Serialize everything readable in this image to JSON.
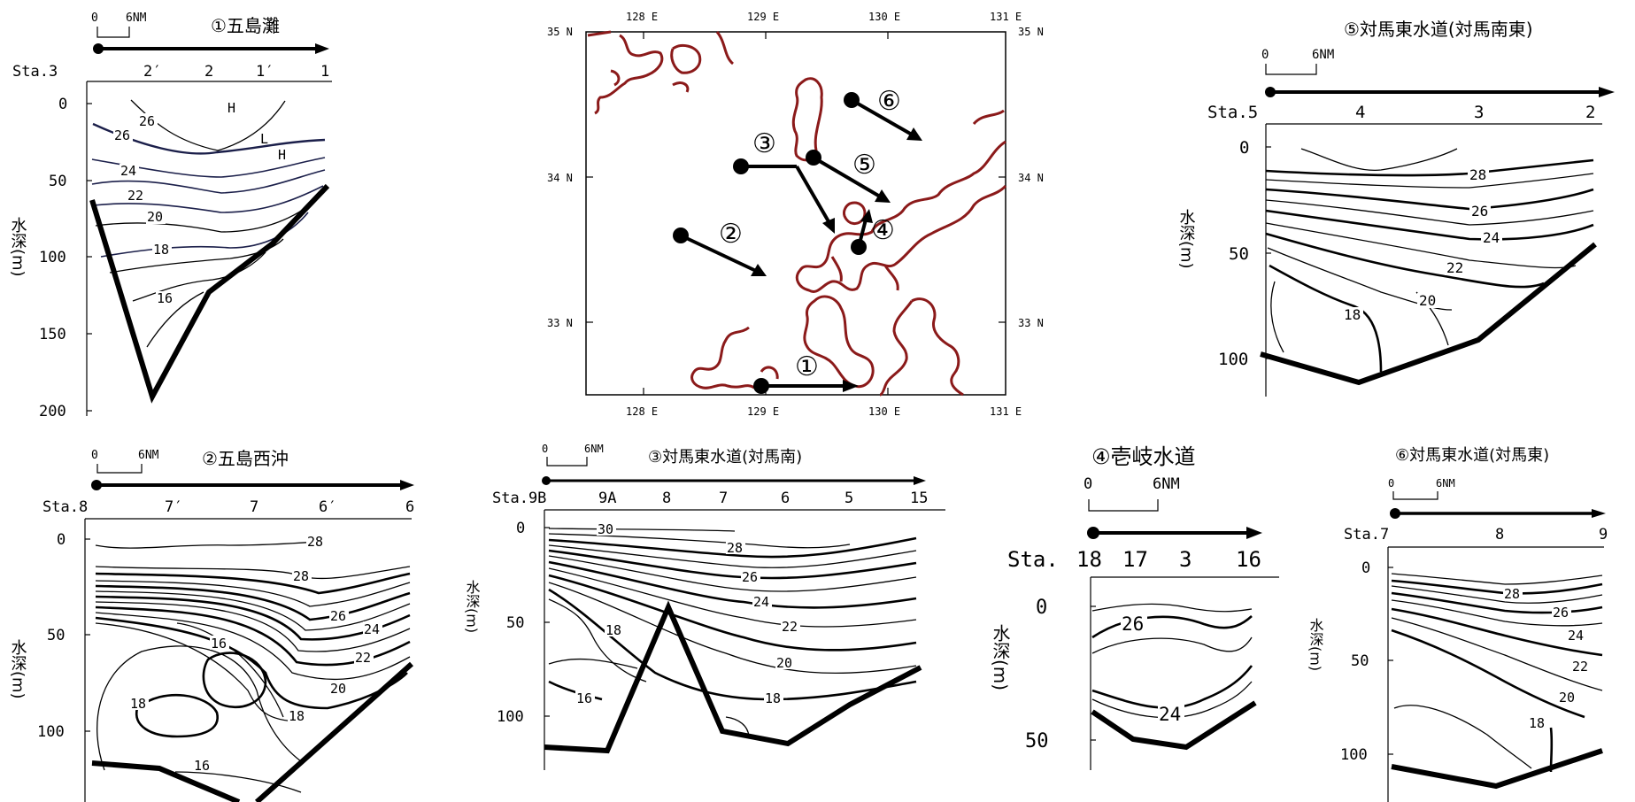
{
  "panels": {
    "p1": {
      "title": "①五島灘",
      "scale": [
        "0",
        "6NM"
      ],
      "stations": [
        "Sta.3",
        "2′",
        "2",
        "1′",
        "1"
      ],
      "depth_ticks": [
        "0",
        "50",
        "100",
        "150",
        "200"
      ],
      "ylabel": "水深(m)",
      "contours": [
        "26",
        "26",
        "24",
        "22",
        "20",
        "18",
        "16"
      ],
      "marks": [
        "H",
        "L",
        "H"
      ]
    },
    "p2": {
      "title": "②五島西沖",
      "scale": [
        "0",
        "6NM"
      ],
      "stations": [
        "Sta.8",
        "7′",
        "7",
        "6′",
        "6"
      ],
      "depth_ticks": [
        "0",
        "50",
        "100"
      ],
      "ylabel": "水深(m)",
      "contours": [
        "28",
        "28",
        "26",
        "24",
        "22",
        "20",
        "16",
        "18",
        "18",
        "16"
      ]
    },
    "p3": {
      "title": "③対馬東水道(対馬南)",
      "scale": [
        "0",
        "6NM"
      ],
      "stations": [
        "Sta.9B",
        "9A",
        "8",
        "7",
        "6",
        "5",
        "15"
      ],
      "depth_ticks": [
        "0",
        "50",
        "100"
      ],
      "ylabel": "水深(m)",
      "contours": [
        "30",
        "28",
        "26",
        "24",
        "22",
        "20",
        "18",
        "18",
        "16"
      ]
    },
    "p4": {
      "title": "④壱岐水道",
      "scale": [
        "0",
        "6NM"
      ],
      "stations": [
        "Sta.",
        "18",
        "17",
        "3",
        "16"
      ],
      "depth_ticks": [
        "0",
        "50"
      ],
      "ylabel": "水深(m)",
      "contours": [
        "26",
        "24"
      ]
    },
    "p5": {
      "title": "⑤対馬東水道(対馬南東)",
      "scale": [
        "0",
        "6NM"
      ],
      "stations": [
        "Sta.5",
        "4",
        "3",
        "2"
      ],
      "depth_ticks": [
        "0",
        "50",
        "100"
      ],
      "ylabel": "水深(m)",
      "contours": [
        "28",
        "26",
        "24",
        "22",
        "20",
        "18"
      ]
    },
    "p6": {
      "title": "⑥対馬東水道(対馬東)",
      "scale": [
        "0",
        "6NM"
      ],
      "stations": [
        "Sta.7",
        "8",
        "9"
      ],
      "depth_ticks": [
        "0",
        "50",
        "100"
      ],
      "ylabel": "水深(m)",
      "contours": [
        "28",
        "26",
        "24",
        "22",
        "20",
        "18"
      ]
    }
  },
  "map": {
    "lon_labels": [
      "128 E",
      "129 E",
      "130 E",
      "131 E"
    ],
    "lat_labels": [
      "35 N",
      "34 N",
      "33 N"
    ],
    "section_markers": [
      "①",
      "②",
      "③",
      "④",
      "⑤",
      "⑥"
    ],
    "colors": {
      "coast": "#8b1a1a"
    }
  }
}
